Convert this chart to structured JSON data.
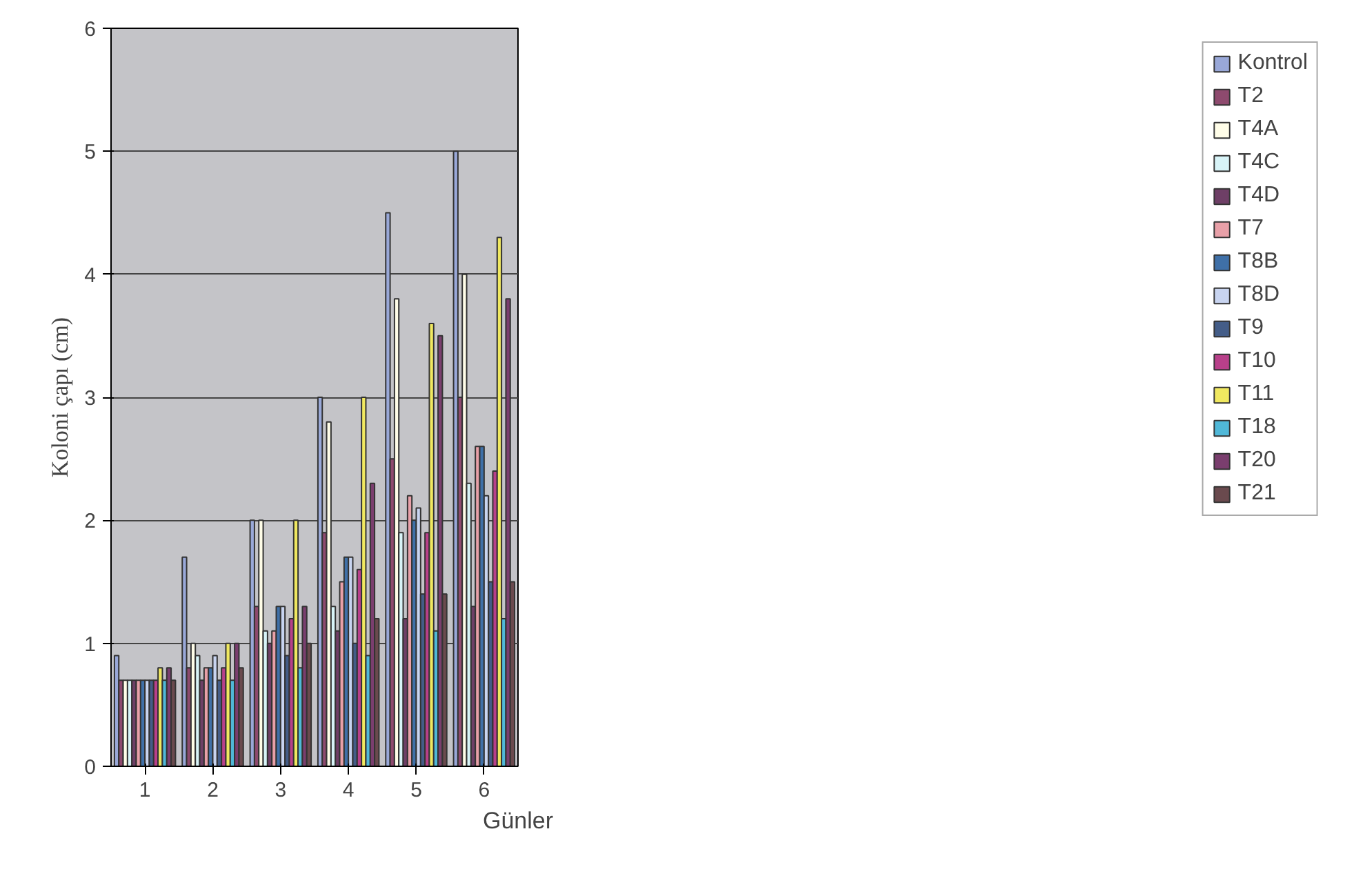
{
  "chart_data": {
    "type": "bar",
    "xlabel": "Günler",
    "ylabel": "Koloni çapı (cm)",
    "categories": [
      "1",
      "2",
      "3",
      "4",
      "5",
      "6"
    ],
    "ylim": [
      0,
      6
    ],
    "yticks": [
      0,
      1,
      2,
      3,
      4,
      5,
      6
    ],
    "grid": "y",
    "legend": "right",
    "series": [
      {
        "name": "Kontrol",
        "color": "#99a8d8",
        "values": [
          0.9,
          1.7,
          2.0,
          3.0,
          4.5,
          5.0
        ]
      },
      {
        "name": "T2",
        "color": "#8e4a6e",
        "values": [
          0.7,
          0.8,
          1.3,
          1.9,
          2.5,
          3.0
        ]
      },
      {
        "name": "T4A",
        "color": "#fffde8",
        "values": [
          0.7,
          1.0,
          2.0,
          2.8,
          3.8,
          4.0
        ]
      },
      {
        "name": "T4C",
        "color": "#d8f4f8",
        "values": [
          0.7,
          0.9,
          1.1,
          1.3,
          1.9,
          2.3
        ]
      },
      {
        "name": "T4D",
        "color": "#6e3f66",
        "values": [
          0.7,
          0.7,
          1.0,
          1.1,
          1.2,
          1.3
        ]
      },
      {
        "name": "T7",
        "color": "#e8a0a8",
        "values": [
          0.7,
          0.8,
          1.1,
          1.5,
          2.2,
          2.6
        ]
      },
      {
        "name": "T8B",
        "color": "#3f70a8",
        "values": [
          0.7,
          0.8,
          1.3,
          1.7,
          2.0,
          2.6
        ]
      },
      {
        "name": "T8D",
        "color": "#c8d4f0",
        "values": [
          0.7,
          0.9,
          1.3,
          1.7,
          2.1,
          2.2
        ]
      },
      {
        "name": "T9",
        "color": "#445d88",
        "values": [
          0.7,
          0.7,
          0.9,
          1.0,
          1.4,
          1.5
        ]
      },
      {
        "name": "T10",
        "color": "#b8408a",
        "values": [
          0.7,
          0.8,
          1.2,
          1.6,
          1.9,
          2.4
        ]
      },
      {
        "name": "T11",
        "color": "#f0e860",
        "values": [
          0.8,
          1.0,
          2.0,
          3.0,
          3.6,
          4.3
        ]
      },
      {
        "name": "T18",
        "color": "#50b8d8",
        "values": [
          0.7,
          0.7,
          0.8,
          0.9,
          1.1,
          1.2
        ]
      },
      {
        "name": "T20",
        "color": "#7a3e6e",
        "values": [
          0.8,
          1.0,
          1.3,
          2.3,
          3.5,
          3.8
        ]
      },
      {
        "name": "T21",
        "color": "#6a4a4e",
        "values": [
          0.7,
          0.8,
          1.0,
          1.2,
          1.4,
          1.5
        ]
      }
    ]
  }
}
